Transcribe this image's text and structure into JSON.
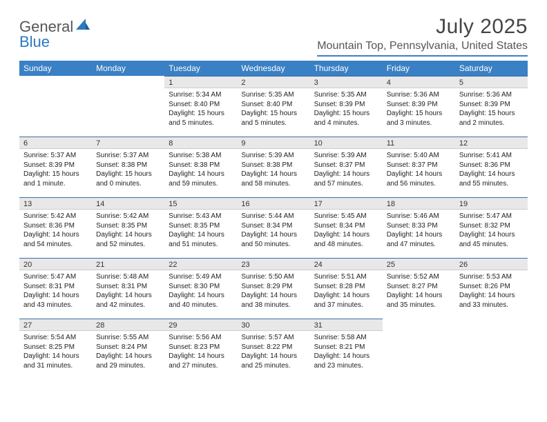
{
  "logo": {
    "text1": "General",
    "text2": "Blue"
  },
  "title": "July 2025",
  "location": "Mountain Top, Pennsylvania, United States",
  "colors": {
    "header_bg": "#3a80c4",
    "header_text": "#ffffff",
    "daynum_bg": "#e8e8e8",
    "border_accent": "#3a6ea5",
    "text": "#222222"
  },
  "day_headers": [
    "Sunday",
    "Monday",
    "Tuesday",
    "Wednesday",
    "Thursday",
    "Friday",
    "Saturday"
  ],
  "weeks": [
    [
      null,
      null,
      {
        "n": "1",
        "sunrise": "5:34 AM",
        "sunset": "8:40 PM",
        "daylight": "15 hours and 5 minutes."
      },
      {
        "n": "2",
        "sunrise": "5:35 AM",
        "sunset": "8:40 PM",
        "daylight": "15 hours and 5 minutes."
      },
      {
        "n": "3",
        "sunrise": "5:35 AM",
        "sunset": "8:39 PM",
        "daylight": "15 hours and 4 minutes."
      },
      {
        "n": "4",
        "sunrise": "5:36 AM",
        "sunset": "8:39 PM",
        "daylight": "15 hours and 3 minutes."
      },
      {
        "n": "5",
        "sunrise": "5:36 AM",
        "sunset": "8:39 PM",
        "daylight": "15 hours and 2 minutes."
      }
    ],
    [
      {
        "n": "6",
        "sunrise": "5:37 AM",
        "sunset": "8:39 PM",
        "daylight": "15 hours and 1 minute."
      },
      {
        "n": "7",
        "sunrise": "5:37 AM",
        "sunset": "8:38 PM",
        "daylight": "15 hours and 0 minutes."
      },
      {
        "n": "8",
        "sunrise": "5:38 AM",
        "sunset": "8:38 PM",
        "daylight": "14 hours and 59 minutes."
      },
      {
        "n": "9",
        "sunrise": "5:39 AM",
        "sunset": "8:38 PM",
        "daylight": "14 hours and 58 minutes."
      },
      {
        "n": "10",
        "sunrise": "5:39 AM",
        "sunset": "8:37 PM",
        "daylight": "14 hours and 57 minutes."
      },
      {
        "n": "11",
        "sunrise": "5:40 AM",
        "sunset": "8:37 PM",
        "daylight": "14 hours and 56 minutes."
      },
      {
        "n": "12",
        "sunrise": "5:41 AM",
        "sunset": "8:36 PM",
        "daylight": "14 hours and 55 minutes."
      }
    ],
    [
      {
        "n": "13",
        "sunrise": "5:42 AM",
        "sunset": "8:36 PM",
        "daylight": "14 hours and 54 minutes."
      },
      {
        "n": "14",
        "sunrise": "5:42 AM",
        "sunset": "8:35 PM",
        "daylight": "14 hours and 52 minutes."
      },
      {
        "n": "15",
        "sunrise": "5:43 AM",
        "sunset": "8:35 PM",
        "daylight": "14 hours and 51 minutes."
      },
      {
        "n": "16",
        "sunrise": "5:44 AM",
        "sunset": "8:34 PM",
        "daylight": "14 hours and 50 minutes."
      },
      {
        "n": "17",
        "sunrise": "5:45 AM",
        "sunset": "8:34 PM",
        "daylight": "14 hours and 48 minutes."
      },
      {
        "n": "18",
        "sunrise": "5:46 AM",
        "sunset": "8:33 PM",
        "daylight": "14 hours and 47 minutes."
      },
      {
        "n": "19",
        "sunrise": "5:47 AM",
        "sunset": "8:32 PM",
        "daylight": "14 hours and 45 minutes."
      }
    ],
    [
      {
        "n": "20",
        "sunrise": "5:47 AM",
        "sunset": "8:31 PM",
        "daylight": "14 hours and 43 minutes."
      },
      {
        "n": "21",
        "sunrise": "5:48 AM",
        "sunset": "8:31 PM",
        "daylight": "14 hours and 42 minutes."
      },
      {
        "n": "22",
        "sunrise": "5:49 AM",
        "sunset": "8:30 PM",
        "daylight": "14 hours and 40 minutes."
      },
      {
        "n": "23",
        "sunrise": "5:50 AM",
        "sunset": "8:29 PM",
        "daylight": "14 hours and 38 minutes."
      },
      {
        "n": "24",
        "sunrise": "5:51 AM",
        "sunset": "8:28 PM",
        "daylight": "14 hours and 37 minutes."
      },
      {
        "n": "25",
        "sunrise": "5:52 AM",
        "sunset": "8:27 PM",
        "daylight": "14 hours and 35 minutes."
      },
      {
        "n": "26",
        "sunrise": "5:53 AM",
        "sunset": "8:26 PM",
        "daylight": "14 hours and 33 minutes."
      }
    ],
    [
      {
        "n": "27",
        "sunrise": "5:54 AM",
        "sunset": "8:25 PM",
        "daylight": "14 hours and 31 minutes."
      },
      {
        "n": "28",
        "sunrise": "5:55 AM",
        "sunset": "8:24 PM",
        "daylight": "14 hours and 29 minutes."
      },
      {
        "n": "29",
        "sunrise": "5:56 AM",
        "sunset": "8:23 PM",
        "daylight": "14 hours and 27 minutes."
      },
      {
        "n": "30",
        "sunrise": "5:57 AM",
        "sunset": "8:22 PM",
        "daylight": "14 hours and 25 minutes."
      },
      {
        "n": "31",
        "sunrise": "5:58 AM",
        "sunset": "8:21 PM",
        "daylight": "14 hours and 23 minutes."
      },
      null,
      null
    ]
  ],
  "labels": {
    "sunrise": "Sunrise: ",
    "sunset": "Sunset: ",
    "daylight": "Daylight: "
  }
}
